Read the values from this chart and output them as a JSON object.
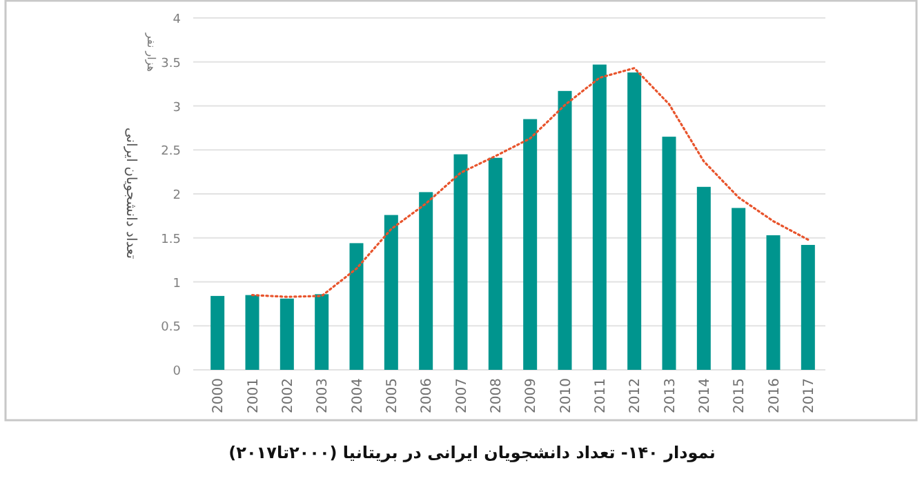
{
  "chart_data": {
    "type": "bar",
    "title": "نمودار ۱۴۰- تعداد دانشجویان ایرانی در بریتانیا (۲۰۰۰تا۲۰۱۷)",
    "ylabel": "تعداد دانشجویان ایرانی",
    "annotations": [
      "هزار نفر"
    ],
    "categories": [
      "2000",
      "2001",
      "2002",
      "2003",
      "2004",
      "2005",
      "2006",
      "2007",
      "2008",
      "2009",
      "2010",
      "2011",
      "2012",
      "2013",
      "2014",
      "2015",
      "2016",
      "2017"
    ],
    "series": [
      {
        "color": "#00958e",
        "values": [
          0.84,
          0.85,
          0.81,
          0.86,
          1.44,
          1.76,
          2.02,
          2.45,
          2.41,
          2.85,
          3.17,
          3.47,
          3.38,
          2.65,
          2.08,
          1.84,
          1.53,
          1.42
        ]
      },
      {
        "type": "line",
        "color": "#e8542c",
        "line_style": "dotted",
        "marker": "none",
        "values": [
          null,
          0.85,
          0.83,
          0.84,
          1.15,
          1.6,
          1.89,
          2.24,
          2.43,
          2.63,
          3.01,
          3.32,
          3.43,
          3.02,
          2.37,
          1.96,
          1.69,
          1.48
        ]
      }
    ],
    "ylim": [
      0,
      4
    ],
    "yticks": [
      0,
      0.5,
      1,
      1.5,
      2,
      2.5,
      3,
      3.5,
      4
    ],
    "grid": "y"
  }
}
